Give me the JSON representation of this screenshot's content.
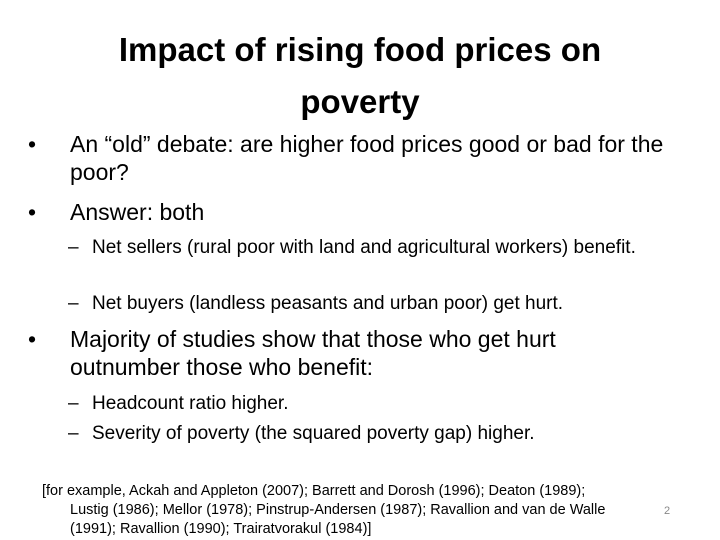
{
  "slide": {
    "title_line1": "Impact of rising food prices on",
    "title_line2": "poverty",
    "bullets": [
      {
        "symbol": "•",
        "text": "An “old” debate: are higher food prices good or bad for the poor?"
      },
      {
        "symbol": "•",
        "text": "Answer: both"
      },
      {
        "symbol": "–",
        "text": "Net sellers (rural poor with land and agricultural workers) benefit."
      },
      {
        "symbol": "–",
        "text": "Net buyers (landless peasants and urban poor) get hurt."
      },
      {
        "symbol": "•",
        "text": "Majority of studies show that those who get hurt outnumber those who benefit:"
      },
      {
        "symbol": "–",
        "text": "Headcount ratio higher."
      },
      {
        "symbol": "–",
        "text": "Severity of poverty (the squared poverty gap) higher."
      }
    ],
    "references": [
      "[for example, Ackah and Appleton (2007); Barrett and Dorosh (1996); Deaton (1989);",
      "Lustig (1986); Mellor (1978); Pinstrup-Andersen (1987); Ravallion and van de Walle",
      "(1991); Ravallion (1990); Trairatvorakul (1984)]"
    ],
    "page_number": "2"
  }
}
